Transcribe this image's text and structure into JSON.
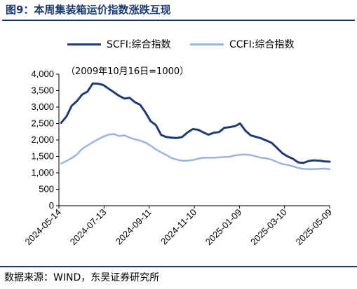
{
  "figure": {
    "title": "图9：本周集装箱运价指数涨跌互现",
    "source": "数据来源：WIND，东吴证券研究所"
  },
  "chart_data": {
    "type": "line",
    "note": "（2009年10月16日=1000）",
    "ylim": [
      0,
      4000
    ],
    "y_ticks": [
      "0",
      "500",
      "1,000",
      "1,500",
      "2,000",
      "2,500",
      "3,000",
      "3,500",
      "4,000"
    ],
    "y_tick_values": [
      0,
      500,
      1000,
      1500,
      2000,
      2500,
      3000,
      3500,
      4000
    ],
    "x_ticks": [
      "2024-05-14",
      "2024-07-13",
      "2024-09-11",
      "2024-11-10",
      "2025-01-09",
      "2025-03-10",
      "2025-05-09"
    ],
    "x_range": [
      "2024-05-14",
      "2025-05-09"
    ],
    "legend_position": "top",
    "grid": false,
    "series": [
      {
        "name": "SCFI:综合指数",
        "color": "#1f3b73",
        "points": [
          [
            "2024-05-17",
            2520
          ],
          [
            "2024-05-24",
            2710
          ],
          [
            "2024-05-31",
            3040
          ],
          [
            "2024-06-07",
            3180
          ],
          [
            "2024-06-14",
            3380
          ],
          [
            "2024-06-21",
            3470
          ],
          [
            "2024-06-28",
            3720
          ],
          [
            "2024-07-05",
            3710
          ],
          [
            "2024-07-12",
            3670
          ],
          [
            "2024-07-19",
            3560
          ],
          [
            "2024-07-26",
            3450
          ],
          [
            "2024-08-02",
            3340
          ],
          [
            "2024-08-09",
            3260
          ],
          [
            "2024-08-16",
            3280
          ],
          [
            "2024-08-23",
            3150
          ],
          [
            "2024-08-30",
            3070
          ],
          [
            "2024-09-06",
            2840
          ],
          [
            "2024-09-13",
            2570
          ],
          [
            "2024-09-20",
            2450
          ],
          [
            "2024-09-27",
            2150
          ],
          [
            "2024-10-04",
            2090
          ],
          [
            "2024-10-11",
            2070
          ],
          [
            "2024-10-18",
            2060
          ],
          [
            "2024-10-25",
            2090
          ],
          [
            "2024-11-01",
            2230
          ],
          [
            "2024-11-08",
            2330
          ],
          [
            "2024-11-15",
            2310
          ],
          [
            "2024-11-22",
            2230
          ],
          [
            "2024-11-29",
            2160
          ],
          [
            "2024-12-06",
            2220
          ],
          [
            "2024-12-13",
            2240
          ],
          [
            "2024-12-20",
            2370
          ],
          [
            "2024-12-27",
            2390
          ],
          [
            "2025-01-03",
            2420
          ],
          [
            "2025-01-10",
            2500
          ],
          [
            "2025-01-17",
            2280
          ],
          [
            "2025-01-24",
            2140
          ],
          [
            "2025-02-07",
            2050
          ],
          [
            "2025-02-14",
            1980
          ],
          [
            "2025-02-21",
            1910
          ],
          [
            "2025-02-28",
            1760
          ],
          [
            "2025-03-07",
            1600
          ],
          [
            "2025-03-14",
            1500
          ],
          [
            "2025-03-21",
            1430
          ],
          [
            "2025-03-28",
            1320
          ],
          [
            "2025-04-04",
            1300
          ],
          [
            "2025-04-11",
            1360
          ],
          [
            "2025-04-18",
            1380
          ],
          [
            "2025-04-25",
            1370
          ],
          [
            "2025-05-02",
            1350
          ],
          [
            "2025-05-09",
            1340
          ]
        ]
      },
      {
        "name": "CCFI:综合指数",
        "color": "#9ab3e0",
        "points": [
          [
            "2024-05-17",
            1280
          ],
          [
            "2024-05-24",
            1360
          ],
          [
            "2024-05-31",
            1450
          ],
          [
            "2024-06-07",
            1560
          ],
          [
            "2024-06-14",
            1730
          ],
          [
            "2024-06-21",
            1830
          ],
          [
            "2024-06-28",
            1930
          ],
          [
            "2024-07-05",
            2020
          ],
          [
            "2024-07-12",
            2100
          ],
          [
            "2024-07-19",
            2160
          ],
          [
            "2024-07-26",
            2180
          ],
          [
            "2024-08-02",
            2120
          ],
          [
            "2024-08-09",
            2140
          ],
          [
            "2024-08-16",
            2070
          ],
          [
            "2024-08-23",
            2020
          ],
          [
            "2024-08-30",
            1980
          ],
          [
            "2024-09-06",
            1920
          ],
          [
            "2024-09-13",
            1830
          ],
          [
            "2024-09-20",
            1710
          ],
          [
            "2024-09-27",
            1620
          ],
          [
            "2024-10-04",
            1540
          ],
          [
            "2024-10-11",
            1450
          ],
          [
            "2024-10-18",
            1400
          ],
          [
            "2024-10-25",
            1370
          ],
          [
            "2024-11-01",
            1370
          ],
          [
            "2024-11-08",
            1390
          ],
          [
            "2024-11-15",
            1430
          ],
          [
            "2024-11-22",
            1460
          ],
          [
            "2024-11-29",
            1460
          ],
          [
            "2024-12-06",
            1460
          ],
          [
            "2024-12-13",
            1470
          ],
          [
            "2024-12-20",
            1480
          ],
          [
            "2024-12-27",
            1490
          ],
          [
            "2025-01-03",
            1530
          ],
          [
            "2025-01-10",
            1550
          ],
          [
            "2025-01-17",
            1560
          ],
          [
            "2025-01-24",
            1540
          ],
          [
            "2025-02-07",
            1460
          ],
          [
            "2025-02-14",
            1440
          ],
          [
            "2025-02-21",
            1400
          ],
          [
            "2025-02-28",
            1330
          ],
          [
            "2025-03-07",
            1270
          ],
          [
            "2025-03-14",
            1240
          ],
          [
            "2025-03-21",
            1200
          ],
          [
            "2025-03-28",
            1150
          ],
          [
            "2025-04-04",
            1120
          ],
          [
            "2025-04-11",
            1110
          ],
          [
            "2025-04-18",
            1110
          ],
          [
            "2025-04-25",
            1120
          ],
          [
            "2025-05-02",
            1130
          ],
          [
            "2025-05-09",
            1110
          ]
        ]
      }
    ]
  }
}
